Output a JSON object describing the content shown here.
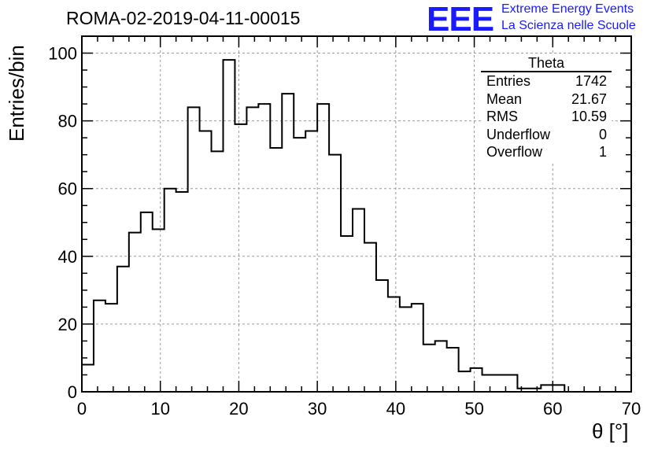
{
  "header": {
    "title": "ROMA-02-2019-04-11-00015",
    "logo_text": "EEE",
    "logo_line1": "Extreme Energy Events",
    "logo_line2": "La Scienza nelle Scuole"
  },
  "stats_box": {
    "title": "Theta",
    "rows": [
      {
        "label": "Entries",
        "value": "1742"
      },
      {
        "label": "Mean",
        "value": "21.67"
      },
      {
        "label": "RMS",
        "value": "10.59"
      },
      {
        "label": "Underflow",
        "value": "0"
      },
      {
        "label": "Overflow",
        "value": "1"
      }
    ]
  },
  "colors": {
    "logo": "#1a1aff",
    "line": "#000000",
    "grid": "#9a9a9a"
  },
  "chart_data": {
    "type": "bar",
    "style": "step-histogram",
    "title": "ROMA-02-2019-04-11-00015",
    "xlabel": "θ [°]",
    "ylabel": "Entries/bin",
    "xlim": [
      0,
      70
    ],
    "ylim": [
      0,
      105
    ],
    "xticks": [
      0,
      10,
      20,
      30,
      40,
      50,
      60,
      70
    ],
    "yticks": [
      0,
      20,
      40,
      60,
      80,
      100
    ],
    "grid": true,
    "bin_width": 1.5,
    "bin_edges_start": 0,
    "values": [
      8,
      27,
      26,
      37,
      47,
      53,
      48,
      60,
      59,
      84,
      77,
      71,
      98,
      79,
      84,
      85,
      72,
      88,
      75,
      77,
      85,
      70,
      46,
      54,
      44,
      33,
      28,
      25,
      26,
      14,
      15,
      13,
      6,
      7,
      5,
      5,
      5,
      1,
      1,
      2,
      2
    ]
  }
}
